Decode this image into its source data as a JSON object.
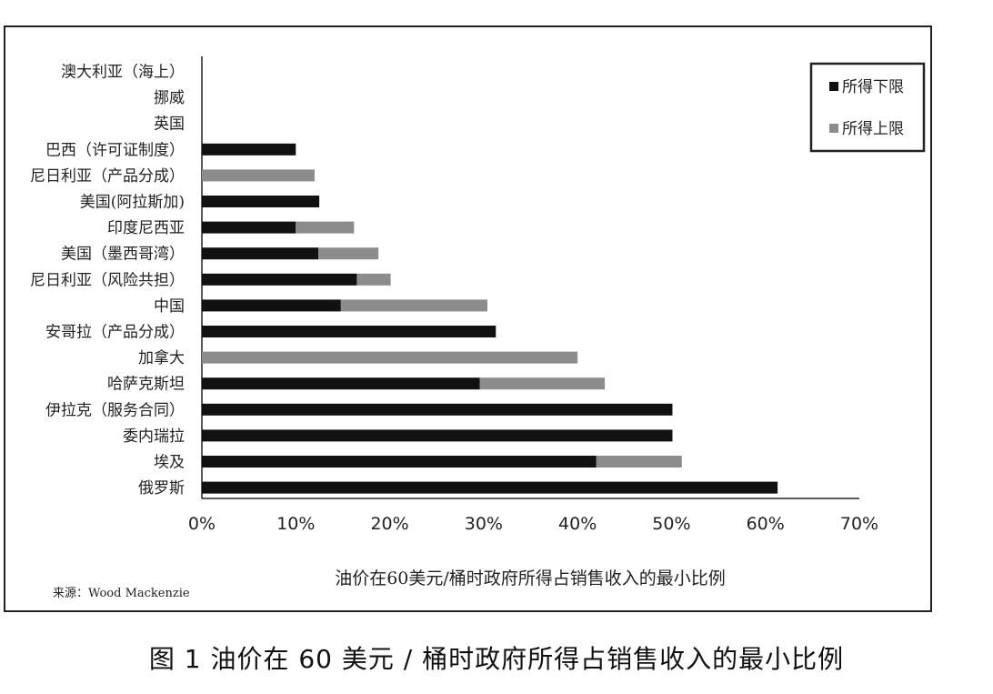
{
  "chart_data": {
    "type": "bar",
    "orientation": "horizontal",
    "stacked": true,
    "categories": [
      "澳大利亚（海上）",
      "挪威",
      "英国",
      "巴西（许可证制度）",
      "尼日利亚（产品分成）",
      "美国(阿拉斯加)",
      "印度尼西亚",
      "美国（墨西哥湾）",
      "尼日利亚（风险共担）",
      "中国",
      "安哥拉（产品分成）",
      "加拿大",
      "哈萨克斯坦",
      "伊拉克（服务合同）",
      "委内瑞拉",
      "埃及",
      "俄罗斯"
    ],
    "series": [
      {
        "name": "所得下限",
        "color": "#111111",
        "values": [
          0,
          0,
          0,
          10.0,
          0,
          12.5,
          10.0,
          12.4,
          16.5,
          14.8,
          31.3,
          0,
          29.6,
          50.1,
          50.1,
          42.0,
          61.3
        ]
      },
      {
        "name": "所得上限",
        "color": "#8c8c8c",
        "values": [
          0,
          0,
          0,
          0,
          12.0,
          0,
          6.2,
          6.4,
          3.6,
          15.6,
          0,
          40.0,
          13.3,
          0,
          0,
          9.1,
          0
        ]
      }
    ],
    "xlabel": "油价在60美元/桶时政府所得占销售收入的最小比例",
    "xlim": [
      0,
      70
    ],
    "xticks": [
      "0%",
      "10%",
      "20%",
      "30%",
      "40%",
      "50%",
      "60%",
      "70%"
    ],
    "legend_position": "top-right",
    "grid": false,
    "source": "来源：Wood Mackenzie"
  },
  "caption": "图 1   油价在 60 美元 / 桶时政府所得占销售收入的最小比例"
}
